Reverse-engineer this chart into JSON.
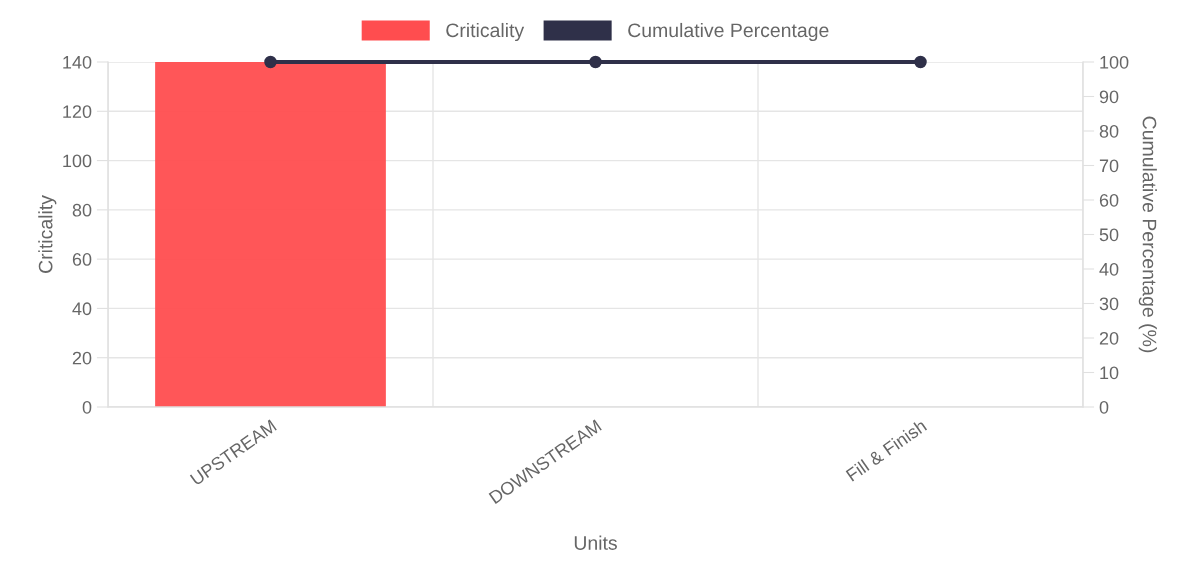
{
  "chart_data": {
    "type": "bar",
    "xlabel": "Units",
    "ylabel": "Criticality",
    "y2label": "Cumulative Percentage (%)",
    "categories": [
      "UPSTREAM",
      "DOWNSTREAM",
      "Fill & Finish"
    ],
    "series": [
      {
        "name": "Criticality",
        "color": "#ff4d4f",
        "values": [
          140,
          0,
          0
        ]
      },
      {
        "name": "Cumulative Percentage",
        "type": "line",
        "axis": "y2",
        "color": "#2f3049",
        "values": [
          100,
          100,
          100
        ],
        "marker": "circle",
        "line_style": "solid"
      }
    ],
    "ylim": [
      0,
      140
    ],
    "yticks": [
      0,
      20,
      40,
      60,
      80,
      100,
      120,
      140
    ],
    "y2lim": [
      0,
      100
    ],
    "y2ticks": [
      0,
      10,
      20,
      30,
      40,
      50,
      60,
      70,
      80,
      90,
      100
    ],
    "grid": true,
    "legend": "top"
  }
}
